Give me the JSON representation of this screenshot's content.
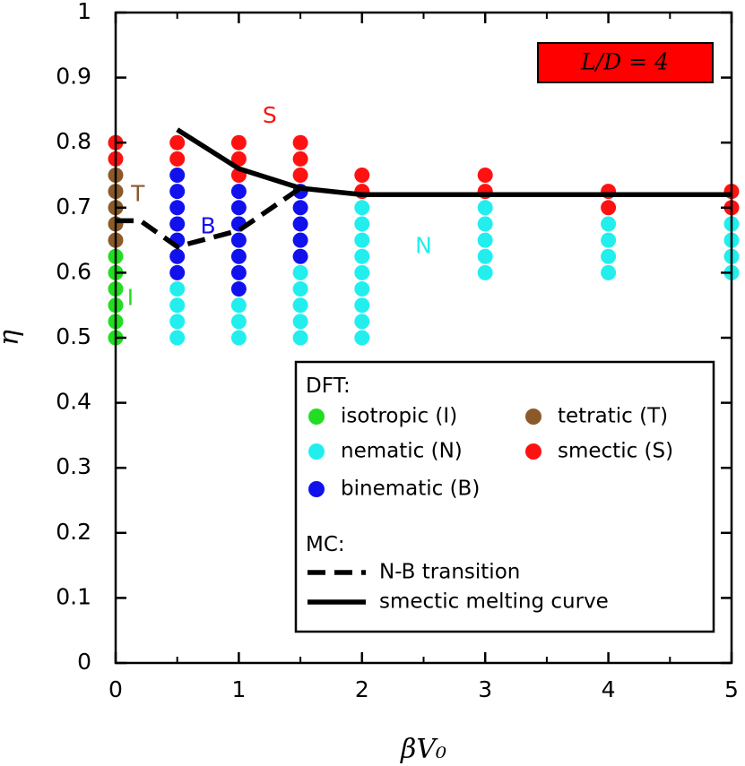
{
  "chart_data": {
    "type": "scatter",
    "xlabel": "βV₀",
    "ylabel": "η",
    "xlim": [
      0,
      5
    ],
    "ylim": [
      0,
      1
    ],
    "xticks": [
      0,
      1,
      2,
      3,
      4,
      5
    ],
    "xtick_labels": [
      "0",
      "1",
      "2",
      "3",
      "4",
      "5"
    ],
    "yticks": [
      0,
      0.1,
      0.2,
      0.3,
      0.4,
      0.5,
      0.6,
      0.7,
      0.8,
      0.9,
      1
    ],
    "ytick_labels": [
      "0",
      "0.1",
      "0.2",
      "0.3",
      "0.4",
      "0.5",
      "0.6",
      "0.7",
      "0.8",
      "0.9",
      "1"
    ],
    "grid": false,
    "annotation_box": {
      "text": "L/D = 4",
      "fill": "#ff0000"
    },
    "colors": {
      "isotropic": "#22dd22",
      "tetratic": "#8b5a2b",
      "nematic": "#22eeee",
      "smectic": "#ff1111",
      "binematic": "#1111ee"
    },
    "phases": [
      {
        "key": "isotropic",
        "name": "isotropic (I)",
        "points": [
          [
            0,
            0.5
          ],
          [
            0,
            0.525
          ],
          [
            0,
            0.55
          ],
          [
            0,
            0.575
          ],
          [
            0,
            0.6
          ],
          [
            0,
            0.625
          ]
        ]
      },
      {
        "key": "tetratic",
        "name": "tetratic (T)",
        "points": [
          [
            0,
            0.65
          ],
          [
            0,
            0.675
          ],
          [
            0,
            0.7
          ],
          [
            0,
            0.725
          ],
          [
            0,
            0.75
          ]
        ]
      },
      {
        "key": "nematic",
        "name": "nematic (N)",
        "points": [
          [
            0.5,
            0.5
          ],
          [
            0.5,
            0.525
          ],
          [
            0.5,
            0.55
          ],
          [
            0.5,
            0.575
          ],
          [
            1,
            0.5
          ],
          [
            1,
            0.525
          ],
          [
            1,
            0.55
          ],
          [
            1.5,
            0.5
          ],
          [
            1.5,
            0.525
          ],
          [
            1.5,
            0.55
          ],
          [
            1.5,
            0.575
          ],
          [
            1.5,
            0.6
          ],
          [
            2,
            0.5
          ],
          [
            2,
            0.525
          ],
          [
            2,
            0.55
          ],
          [
            2,
            0.575
          ],
          [
            2,
            0.6
          ],
          [
            2,
            0.625
          ],
          [
            2,
            0.65
          ],
          [
            2,
            0.675
          ],
          [
            2,
            0.7
          ],
          [
            3,
            0.6
          ],
          [
            3,
            0.625
          ],
          [
            3,
            0.65
          ],
          [
            3,
            0.675
          ],
          [
            3,
            0.7
          ],
          [
            4,
            0.6
          ],
          [
            4,
            0.625
          ],
          [
            4,
            0.65
          ],
          [
            4,
            0.675
          ],
          [
            5,
            0.6
          ],
          [
            5,
            0.625
          ],
          [
            5,
            0.65
          ],
          [
            5,
            0.675
          ]
        ]
      },
      {
        "key": "smectic",
        "name": "smectic (S)",
        "points": [
          [
            0,
            0.775
          ],
          [
            0,
            0.8
          ],
          [
            0.5,
            0.775
          ],
          [
            0.5,
            0.8
          ],
          [
            1,
            0.75
          ],
          [
            1,
            0.775
          ],
          [
            1,
            0.8
          ],
          [
            1.5,
            0.75
          ],
          [
            1.5,
            0.775
          ],
          [
            1.5,
            0.8
          ],
          [
            2,
            0.725
          ],
          [
            2,
            0.75
          ],
          [
            3,
            0.725
          ],
          [
            3,
            0.75
          ],
          [
            4,
            0.7
          ],
          [
            4,
            0.725
          ],
          [
            5,
            0.7
          ],
          [
            5,
            0.725
          ]
        ]
      },
      {
        "key": "binematic",
        "name": "binematic (B)",
        "points": [
          [
            0.5,
            0.6
          ],
          [
            0.5,
            0.625
          ],
          [
            0.5,
            0.65
          ],
          [
            0.5,
            0.675
          ],
          [
            0.5,
            0.7
          ],
          [
            0.5,
            0.725
          ],
          [
            0.5,
            0.75
          ],
          [
            1,
            0.575
          ],
          [
            1,
            0.6
          ],
          [
            1,
            0.625
          ],
          [
            1,
            0.65
          ],
          [
            1,
            0.675
          ],
          [
            1,
            0.7
          ],
          [
            1,
            0.725
          ],
          [
            1.5,
            0.625
          ],
          [
            1.5,
            0.65
          ],
          [
            1.5,
            0.675
          ],
          [
            1.5,
            0.7
          ],
          [
            1.5,
            0.725
          ]
        ]
      }
    ],
    "region_labels": [
      {
        "text": "S",
        "key": "smectic",
        "x": 1.25,
        "y": 0.84
      },
      {
        "text": "T",
        "key": "tetratic",
        "x": 0.18,
        "y": 0.72
      },
      {
        "text": "B",
        "key": "binematic",
        "x": 0.75,
        "y": 0.67
      },
      {
        "text": "N",
        "key": "nematic",
        "x": 2.5,
        "y": 0.64
      },
      {
        "text": "I",
        "key": "isotropic",
        "x": 0.12,
        "y": 0.56
      }
    ],
    "lines": [
      {
        "name": "N-B transition",
        "style": "dashed",
        "points": [
          [
            0,
            0.68
          ],
          [
            0.2,
            0.68
          ],
          [
            0.5,
            0.64
          ],
          [
            1,
            0.665
          ],
          [
            1.5,
            0.73
          ]
        ]
      },
      {
        "name": "smectic melting curve",
        "style": "solid",
        "points": [
          [
            0.5,
            0.82
          ],
          [
            1,
            0.76
          ],
          [
            1.5,
            0.73
          ],
          [
            2,
            0.72
          ],
          [
            5,
            0.72
          ]
        ]
      }
    ],
    "legend": {
      "position": "bottom-right",
      "dft_title": "DFT:",
      "mc_title": "MC:",
      "dft_entries": [
        {
          "key": "isotropic",
          "label": "isotropic (I)"
        },
        {
          "key": "tetratic",
          "label": "tetratic (T)"
        },
        {
          "key": "nematic",
          "label": "nematic (N)"
        },
        {
          "key": "smectic",
          "label": "smectic (S)"
        },
        {
          "key": "binematic",
          "label": "binematic (B)"
        }
      ],
      "mc_entries": [
        {
          "style": "dashed",
          "label": "N-B transition"
        },
        {
          "style": "solid",
          "label": "smectic melting curve"
        }
      ]
    }
  }
}
